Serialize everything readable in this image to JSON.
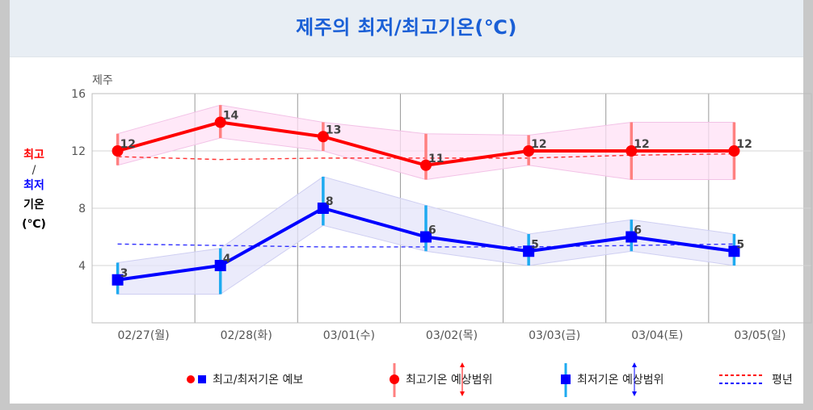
{
  "chart_data": {
    "type": "line",
    "title": "제주의 최저/최고기온(℃)",
    "subtitle": "제주",
    "ylabel": {
      "high": "최고",
      "sep": "/",
      "low": "최저",
      "rest": "기온",
      "unit": "(℃)"
    },
    "ylim": [
      0,
      16
    ],
    "yticks": [
      4,
      8,
      12,
      16
    ],
    "grid": true,
    "categories": [
      "02/27(월)",
      "02/28(화)",
      "03/01(수)",
      "03/02(목)",
      "03/03(금)",
      "03/04(토)",
      "03/05(일)"
    ],
    "series": [
      {
        "name": "최고기온",
        "role": "high",
        "color": "#ff0000",
        "marker": "circle",
        "values": [
          12,
          14,
          13,
          11,
          12,
          12,
          12
        ],
        "range": [
          [
            11,
            13.2
          ],
          [
            12.9,
            15.2
          ],
          [
            12,
            14
          ],
          [
            10,
            13.2
          ],
          [
            11,
            13.1
          ],
          [
            10,
            14
          ],
          [
            10,
            14
          ]
        ],
        "normal": [
          11.6,
          11.4,
          11.5,
          11.5,
          11.5,
          11.7,
          11.8
        ]
      },
      {
        "name": "최저기온",
        "role": "low",
        "color": "#0000ff",
        "marker": "square",
        "values": [
          3,
          4,
          8,
          6,
          5,
          6,
          5
        ],
        "range": [
          [
            2,
            4.2
          ],
          [
            2,
            5.2
          ],
          [
            6.8,
            10.2
          ],
          [
            5,
            8.2
          ],
          [
            4,
            6.2
          ],
          [
            5,
            7.2
          ],
          [
            4,
            6.2
          ]
        ],
        "normal": [
          5.5,
          5.4,
          5.3,
          5.3,
          5.3,
          5.4,
          5.5
        ]
      }
    ],
    "legend": {
      "position": "bottom",
      "forecast": "최고/최저기온 예보",
      "high_range": "최고기온 예상범위",
      "low_range": "최저기온 예상범위",
      "normal": "평년"
    }
  }
}
